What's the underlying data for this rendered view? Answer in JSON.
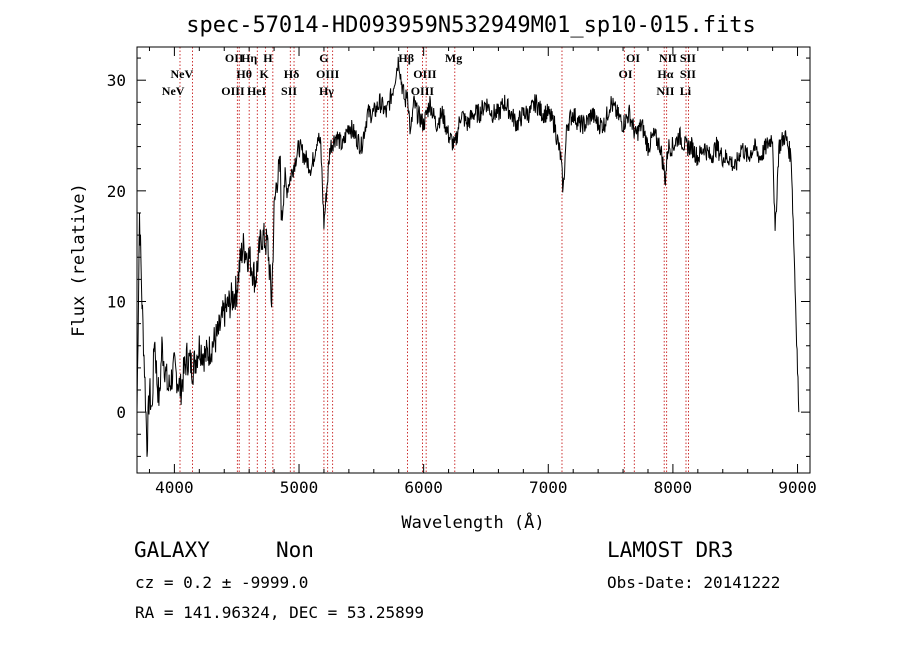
{
  "chart_data": {
    "type": "line",
    "title": "spec-57014-HD093959N532949M01_sp10-015.fits",
    "xlabel": "Wavelength (Å)",
    "ylabel": "Flux (relative)",
    "xlim": [
      3700,
      9100
    ],
    "ylim": [
      -5.5,
      33
    ],
    "xticks": [
      4000,
      5000,
      6000,
      7000,
      8000,
      9000
    ],
    "yticks": [
      0,
      10,
      20,
      30
    ],
    "series": [
      {
        "x": [
          3700,
          3720,
          3740,
          3760,
          3780,
          3800,
          3820,
          3840,
          3860,
          3880,
          3900,
          3950,
          4000,
          4050,
          4100,
          4150,
          4200,
          4250,
          4300,
          4350,
          4400,
          4450,
          4500,
          4520,
          4550,
          4600,
          4650,
          4700,
          4750,
          4780,
          4800,
          4820,
          4850,
          4861,
          4880,
          4900,
          4950,
          5000,
          5050,
          5100,
          5150,
          5175,
          5200,
          5250,
          5300,
          5350,
          5400,
          5450,
          5500,
          5550,
          5600,
          5650,
          5700,
          5750,
          5800,
          5820,
          5850,
          5870,
          5895,
          5920,
          5950,
          6000,
          6050,
          6100,
          6150,
          6200,
          6250,
          6300,
          6350,
          6400,
          6450,
          6500,
          6550,
          6600,
          6650,
          6700,
          6750,
          6800,
          6850,
          6900,
          6950,
          7000,
          7050,
          7100,
          7120,
          7150,
          7200,
          7250,
          7300,
          7350,
          7400,
          7450,
          7500,
          7550,
          7600,
          7650,
          7700,
          7750,
          7800,
          7850,
          7900,
          7940,
          7960,
          8000,
          8050,
          8100,
          8150,
          8200,
          8250,
          8300,
          8350,
          8400,
          8450,
          8500,
          8550,
          8600,
          8650,
          8700,
          8750,
          8800,
          8820,
          8850,
          8900,
          8950,
          9000,
          9010
        ],
        "y": [
          0,
          18,
          10,
          4,
          -3,
          2,
          0,
          7,
          3,
          1,
          6,
          2,
          4,
          2,
          5,
          4,
          6,
          5,
          6,
          7,
          9,
          10,
          11,
          13,
          15,
          14,
          12,
          16,
          15,
          10,
          18,
          21,
          22,
          17,
          21,
          20,
          22,
          24,
          23,
          22,
          25,
          24,
          17,
          24,
          25,
          24,
          26,
          25,
          24,
          27,
          27,
          28,
          27,
          29,
          32,
          30,
          28,
          29,
          25,
          28,
          27,
          26,
          28,
          26,
          27,
          25,
          24,
          27,
          26,
          27,
          27,
          28,
          27,
          27,
          28,
          27,
          26,
          27,
          27,
          28,
          27,
          27,
          26,
          23,
          20,
          26,
          27,
          26,
          26,
          27,
          26,
          26,
          28,
          27,
          26,
          27,
          25,
          26,
          24,
          25,
          24,
          21,
          24,
          24,
          25,
          24,
          24,
          23,
          24,
          23,
          24,
          23,
          23,
          22,
          24,
          23,
          24,
          23,
          24,
          25,
          16,
          24,
          25,
          23,
          4,
          0
        ]
      }
    ],
    "line_labels": [
      {
        "label": "NeV",
        "wavelength": 4060,
        "row": 1
      },
      {
        "label": "NeV",
        "wavelength": 3990,
        "row": 2
      },
      {
        "label": "OII",
        "wavelength": 4480,
        "row": 0
      },
      {
        "label": "Hη",
        "wavelength": 4600,
        "row": 0
      },
      {
        "label": "Hθ",
        "wavelength": 4560,
        "row": 1
      },
      {
        "label": "OIII",
        "wavelength": 4470,
        "row": 2
      },
      {
        "label": "HeI",
        "wavelength": 4660,
        "row": 2
      },
      {
        "label": "H",
        "wavelength": 4750,
        "row": 0
      },
      {
        "label": "K",
        "wavelength": 4720,
        "row": 1
      },
      {
        "label": "Hδ",
        "wavelength": 4940,
        "row": 1
      },
      {
        "label": "SII",
        "wavelength": 4920,
        "row": 2
      },
      {
        "label": "G",
        "wavelength": 5200,
        "row": 0
      },
      {
        "label": "OIII",
        "wavelength": 5230,
        "row": 1
      },
      {
        "label": "Hγ",
        "wavelength": 5220,
        "row": 2
      },
      {
        "label": "Hβ",
        "wavelength": 5860,
        "row": 0
      },
      {
        "label": "OIII",
        "wavelength": 6010,
        "row": 1
      },
      {
        "label": "OIII",
        "wavelength": 5990,
        "row": 2
      },
      {
        "label": "Mg",
        "wavelength": 6240,
        "row": 0
      },
      {
        "label": "OI",
        "wavelength": 7680,
        "row": 0
      },
      {
        "label": "OI",
        "wavelength": 7620,
        "row": 1
      },
      {
        "label": "NII",
        "wavelength": 7960,
        "row": 0
      },
      {
        "label": "SII",
        "wavelength": 8120,
        "row": 0
      },
      {
        "label": "Hα",
        "wavelength": 7940,
        "row": 1
      },
      {
        "label": "SII",
        "wavelength": 8120,
        "row": 1
      },
      {
        "label": "NII",
        "wavelength": 7940,
        "row": 2
      },
      {
        "label": "Li",
        "wavelength": 8100,
        "row": 2
      }
    ],
    "line_markers": [
      4045,
      4145,
      4505,
      4520,
      4600,
      4665,
      4730,
      4790,
      4930,
      4960,
      5200,
      5230,
      5270,
      5870,
      5990,
      6020,
      6250,
      7110,
      7610,
      7690,
      7930,
      7950,
      8105,
      8125
    ],
    "colors": {
      "spectrum": "#000000",
      "markers": "#c00000"
    }
  },
  "info": {
    "class": "GALAXY",
    "subclass": "Non",
    "survey": "LAMOST DR3",
    "cz": "cz = 0.2 ± -9999.0",
    "obs_date": "Obs-Date: 20141222",
    "coords": "RA = 141.96324, DEC =  53.25899"
  }
}
